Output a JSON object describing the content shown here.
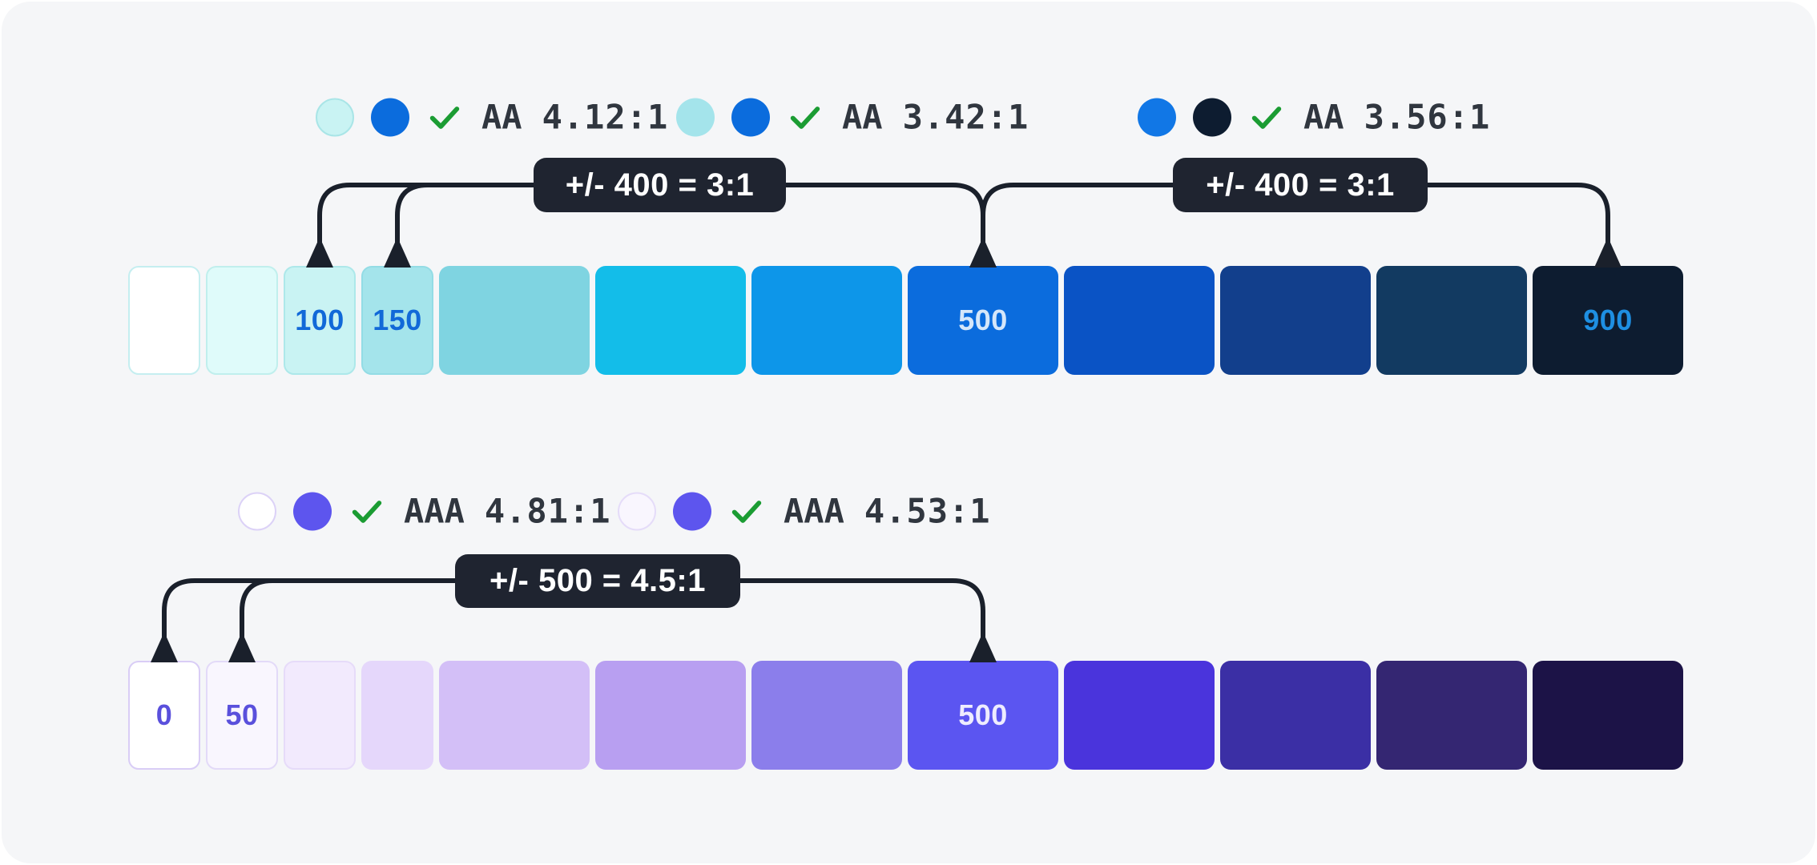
{
  "colors": {
    "card_background": "#F5F6F8",
    "connector_line": "#1A202B",
    "badge_background": "#1F2430",
    "badge_text": "#FFFFFF",
    "ratio_text": "#30363F",
    "check_green": "#1B9C33"
  },
  "sections": [
    {
      "name": "blue-scale",
      "annotations": [
        {
          "circle1": {
            "fill": "#C9F3F3",
            "border": "#A9E5E7"
          },
          "circle2": {
            "fill": "#0B6CDD",
            "border": null
          },
          "check_icon": "check-icon",
          "level": "AA",
          "ratio": "4.12:1"
        },
        {
          "circle1": {
            "fill": "#A4E4EB",
            "border": null
          },
          "circle2": {
            "fill": "#0B6CDD",
            "border": null
          },
          "check_icon": "check-icon",
          "level": "AA",
          "ratio": "3.42:1"
        },
        {
          "circle1": {
            "fill": "#1177E6",
            "border": null
          },
          "circle2": {
            "fill": "#0D1C30",
            "border": null
          },
          "check_icon": "check-icon",
          "level": "AA",
          "ratio": "3.56:1"
        }
      ],
      "badges": [
        {
          "label": "+/- 400 = 3:1"
        },
        {
          "label": "+/- 400 = 3:1"
        }
      ],
      "swatches": [
        {
          "label": "",
          "label_color": null,
          "color": "#FFFFFF",
          "border": "#C5EEF0",
          "size": "narrow"
        },
        {
          "label": "",
          "label_color": null,
          "color": "#DFFBFA",
          "border": "#C0EFED",
          "size": "narrow"
        },
        {
          "label": "100",
          "label_color": "#1169D8",
          "color": "#C9F3F3",
          "border": "#ADE8EA",
          "size": "narrow"
        },
        {
          "label": "150",
          "label_color": "#1169D8",
          "color": "#A4E4EB",
          "border": "#93DCE5",
          "size": "narrow"
        },
        {
          "label": "",
          "label_color": null,
          "color": "#7FD4E1",
          "border": null,
          "size": "wide"
        },
        {
          "label": "",
          "label_color": null,
          "color": "#13BDE9",
          "border": null,
          "size": "wide"
        },
        {
          "label": "",
          "label_color": null,
          "color": "#0D96E9",
          "border": null,
          "size": "wide"
        },
        {
          "label": "500",
          "label_color": "#D5E7FA",
          "color": "#0B6CDD",
          "border": null,
          "size": "wide"
        },
        {
          "label": "",
          "label_color": null,
          "color": "#0A53C5",
          "border": null,
          "size": "wide"
        },
        {
          "label": "",
          "label_color": null,
          "color": "#123F8C",
          "border": null,
          "size": "wide"
        },
        {
          "label": "",
          "label_color": null,
          "color": "#123A61",
          "border": null,
          "size": "wide"
        },
        {
          "label": "900",
          "label_color": "#1E8FE2",
          "color": "#0D1C30",
          "border": null,
          "size": "wide"
        }
      ]
    },
    {
      "name": "purple-scale",
      "annotations": [
        {
          "circle1": {
            "fill": "#FFFFFF",
            "border": "#DCD2F7"
          },
          "circle2": {
            "fill": "#5D55EE",
            "border": null
          },
          "check_icon": "check-icon",
          "level": "AAA",
          "ratio": "4.81:1"
        },
        {
          "circle1": {
            "fill": "#F9F6FE",
            "border": "#E5DCF9"
          },
          "circle2": {
            "fill": "#5D55EE",
            "border": null
          },
          "check_icon": "check-icon",
          "level": "AAA",
          "ratio": "4.53:1"
        }
      ],
      "badges": [
        {
          "label": "+/- 500 = 4.5:1"
        }
      ],
      "swatches": [
        {
          "label": "0",
          "label_color": "#5A50DC",
          "color": "#FFFFFF",
          "border": "#D9CDF6",
          "size": "narrow"
        },
        {
          "label": "50",
          "label_color": "#5A50DC",
          "color": "#F9F6FE",
          "border": "#E3DAF8",
          "size": "narrow"
        },
        {
          "label": "",
          "label_color": null,
          "color": "#F2EAFD",
          "border": "#E6DBF9",
          "size": "narrow"
        },
        {
          "label": "",
          "label_color": null,
          "color": "#E5D7FB",
          "border": null,
          "size": "narrow"
        },
        {
          "label": "",
          "label_color": null,
          "color": "#D3BFF7",
          "border": null,
          "size": "wide"
        },
        {
          "label": "",
          "label_color": null,
          "color": "#B89FF1",
          "border": null,
          "size": "wide"
        },
        {
          "label": "",
          "label_color": null,
          "color": "#8B7EEB",
          "border": null,
          "size": "wide"
        },
        {
          "label": "500",
          "label_color": "#EEECFE",
          "color": "#5B55F1",
          "border": null,
          "size": "wide"
        },
        {
          "label": "",
          "label_color": null,
          "color": "#4A34DC",
          "border": null,
          "size": "wide"
        },
        {
          "label": "",
          "label_color": null,
          "color": "#3B2FA5",
          "border": null,
          "size": "wide"
        },
        {
          "label": "",
          "label_color": null,
          "color": "#342672",
          "border": null,
          "size": "wide"
        },
        {
          "label": "",
          "label_color": null,
          "color": "#1C1347",
          "border": null,
          "size": "wide"
        }
      ]
    }
  ]
}
